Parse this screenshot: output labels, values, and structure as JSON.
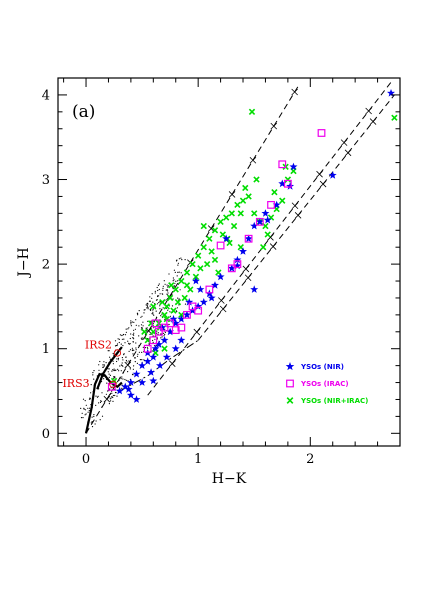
{
  "chart_data": {
    "type": "scatter",
    "panel_label": "(a)",
    "xlabel": "H−K",
    "ylabel": "J−H",
    "xlim": [
      -0.25,
      2.8
    ],
    "ylim": [
      -0.15,
      4.2
    ],
    "x_ticks": [
      0,
      1,
      2
    ],
    "y_ticks": [
      0,
      1,
      2,
      3,
      4
    ],
    "grid": false,
    "legend_position": "lower-right",
    "colors": {
      "nir": "#0000ee",
      "irac": "#ee00ee",
      "nir_irac": "#00dd00",
      "labels": "#e00000"
    },
    "annotations": [
      {
        "text": "IRS2",
        "x": 0.25,
        "y": 1.0,
        "point": [
          0.28,
          0.95
        ]
      },
      {
        "text": "IRS3",
        "x": 0.05,
        "y": 0.55,
        "point": [
          0.24,
          0.58
        ]
      }
    ],
    "reddening_vectors": [
      {
        "from": [
          0.0,
          0.0
        ],
        "to": [
          1.9,
          4.12
        ]
      },
      {
        "from": [
          0.55,
          0.45
        ],
        "to": [
          2.72,
          4.15
        ]
      },
      {
        "from": [
          1.0,
          1.1
        ],
        "to": [
          2.75,
          4.0
        ]
      }
    ],
    "intrinsic_loci": {
      "dwarf_branch": [
        [
          0.0,
          0.0
        ],
        [
          0.05,
          0.3
        ],
        [
          0.08,
          0.58
        ],
        [
          0.12,
          0.7
        ],
        [
          0.17,
          0.68
        ],
        [
          0.22,
          0.6
        ],
        [
          0.28,
          0.55
        ],
        [
          0.32,
          0.6
        ]
      ],
      "giant_branch": [
        [
          0.1,
          0.52
        ],
        [
          0.15,
          0.7
        ],
        [
          0.22,
          0.85
        ],
        [
          0.28,
          0.95
        ],
        [
          0.32,
          1.02
        ]
      ],
      "ctts_locus": [
        [
          0.3,
          0.5
        ],
        [
          0.55,
          0.68
        ],
        [
          0.75,
          0.88
        ],
        [
          1.0,
          1.1
        ]
      ]
    },
    "series": [
      {
        "name": "YSOs (NIR)",
        "marker": "star",
        "points": [
          [
            0.3,
            0.5
          ],
          [
            0.35,
            0.55
          ],
          [
            0.4,
            0.6
          ],
          [
            0.45,
            0.7
          ],
          [
            0.5,
            0.8
          ],
          [
            0.55,
            0.85
          ],
          [
            0.6,
            0.9
          ],
          [
            0.62,
            1.0
          ],
          [
            0.65,
            1.05
          ],
          [
            0.7,
            1.1
          ],
          [
            0.75,
            1.2
          ],
          [
            0.8,
            1.3
          ],
          [
            0.85,
            1.35
          ],
          [
            0.9,
            1.4
          ],
          [
            0.95,
            1.45
          ],
          [
            1.0,
            1.5
          ],
          [
            1.05,
            1.55
          ],
          [
            1.1,
            1.65
          ],
          [
            1.15,
            1.75
          ],
          [
            1.2,
            1.85
          ],
          [
            1.3,
            1.95
          ],
          [
            1.35,
            2.05
          ],
          [
            1.4,
            2.15
          ],
          [
            1.45,
            2.3
          ],
          [
            1.5,
            2.45
          ],
          [
            1.55,
            2.5
          ],
          [
            1.6,
            2.6
          ],
          [
            1.7,
            2.7
          ],
          [
            1.75,
            2.95
          ],
          [
            1.85,
            3.15
          ],
          [
            1.5,
            1.7
          ],
          [
            2.2,
            3.05
          ],
          [
            2.72,
            4.02
          ],
          [
            0.4,
            0.45
          ],
          [
            0.5,
            0.6
          ],
          [
            0.58,
            0.72
          ],
          [
            0.66,
            0.8
          ],
          [
            0.72,
            0.9
          ],
          [
            0.8,
            1.0
          ],
          [
            0.85,
            1.1
          ],
          [
            0.55,
            0.95
          ],
          [
            0.6,
            0.62
          ],
          [
            0.45,
            0.4
          ],
          [
            0.38,
            0.52
          ],
          [
            0.68,
            1.25
          ],
          [
            0.78,
            1.35
          ],
          [
            0.92,
            1.55
          ],
          [
            1.02,
            1.7
          ],
          [
            1.12,
            1.6
          ],
          [
            0.98,
            1.8
          ],
          [
            1.25,
            2.3
          ],
          [
            1.35,
            1.98
          ],
          [
            1.62,
            2.52
          ],
          [
            1.82,
            2.92
          ]
        ]
      },
      {
        "name": "YSOs (IRAC)",
        "marker": "square",
        "points": [
          [
            0.55,
            1.0
          ],
          [
            0.6,
            1.1
          ],
          [
            0.65,
            1.2
          ],
          [
            0.7,
            1.25
          ],
          [
            0.75,
            1.3
          ],
          [
            0.8,
            1.22
          ],
          [
            0.9,
            1.4
          ],
          [
            0.95,
            1.5
          ],
          [
            1.0,
            1.45
          ],
          [
            1.1,
            1.7
          ],
          [
            1.2,
            2.22
          ],
          [
            1.3,
            1.95
          ],
          [
            1.35,
            2.0
          ],
          [
            1.45,
            2.3
          ],
          [
            1.55,
            2.5
          ],
          [
            1.65,
            2.7
          ],
          [
            1.8,
            2.95
          ],
          [
            1.75,
            3.18
          ],
          [
            2.1,
            3.55
          ],
          [
            0.23,
            0.55
          ],
          [
            0.62,
            1.3
          ],
          [
            0.85,
            1.25
          ]
        ]
      },
      {
        "name": "YSOs (NIR+IRAC)",
        "marker": "cross",
        "points": [
          [
            0.55,
            1.1
          ],
          [
            0.6,
            1.2
          ],
          [
            0.65,
            1.3
          ],
          [
            0.7,
            1.4
          ],
          [
            0.72,
            1.5
          ],
          [
            0.75,
            1.6
          ],
          [
            0.8,
            1.7
          ],
          [
            0.85,
            1.8
          ],
          [
            0.9,
            1.9
          ],
          [
            0.95,
            2.0
          ],
          [
            1.0,
            2.1
          ],
          [
            1.05,
            2.2
          ],
          [
            1.1,
            2.3
          ],
          [
            1.15,
            2.4
          ],
          [
            1.2,
            2.5
          ],
          [
            1.25,
            2.55
          ],
          [
            1.3,
            2.6
          ],
          [
            1.35,
            2.7
          ],
          [
            1.4,
            2.75
          ],
          [
            1.45,
            2.8
          ],
          [
            1.5,
            2.6
          ],
          [
            1.55,
            2.5
          ],
          [
            1.6,
            2.45
          ],
          [
            1.65,
            2.55
          ],
          [
            1.7,
            2.65
          ],
          [
            1.75,
            2.75
          ],
          [
            1.8,
            3.0
          ],
          [
            1.85,
            3.1
          ],
          [
            0.6,
            1.5
          ],
          [
            0.68,
            1.55
          ],
          [
            0.78,
            1.45
          ],
          [
            0.88,
            1.6
          ],
          [
            0.93,
            1.7
          ],
          [
            1.02,
            1.95
          ],
          [
            1.12,
            2.15
          ],
          [
            1.22,
            2.35
          ],
          [
            1.32,
            2.45
          ],
          [
            1.42,
            2.9
          ],
          [
            1.48,
            3.8
          ],
          [
            1.38,
            2.2
          ],
          [
            1.28,
            2.25
          ],
          [
            1.18,
            1.9
          ],
          [
            0.98,
            1.85
          ],
          [
            0.82,
            1.55
          ],
          [
            0.72,
            1.35
          ],
          [
            0.66,
            1.25
          ],
          [
            0.58,
            1.3
          ],
          [
            0.52,
            1.2
          ],
          [
            0.9,
            1.75
          ],
          [
            1.08,
            2.0
          ],
          [
            1.26,
            2.3
          ],
          [
            1.58,
            2.2
          ],
          [
            1.68,
            2.85
          ],
          [
            1.78,
            3.15
          ],
          [
            2.75,
            3.73
          ],
          [
            0.25,
            0.62
          ],
          [
            0.7,
            1.0
          ],
          [
            0.85,
            1.4
          ],
          [
            1.15,
            2.05
          ],
          [
            1.38,
            2.6
          ],
          [
            0.62,
            0.95
          ],
          [
            0.76,
            1.75
          ],
          [
            1.05,
            2.45
          ],
          [
            1.52,
            3.0
          ],
          [
            1.62,
            2.35
          ]
        ]
      }
    ],
    "field_stars": "dense small black dots concentrated along the intrinsic loci between H-K 0 to 0.8 and J-H 0.2 to 1.8"
  }
}
